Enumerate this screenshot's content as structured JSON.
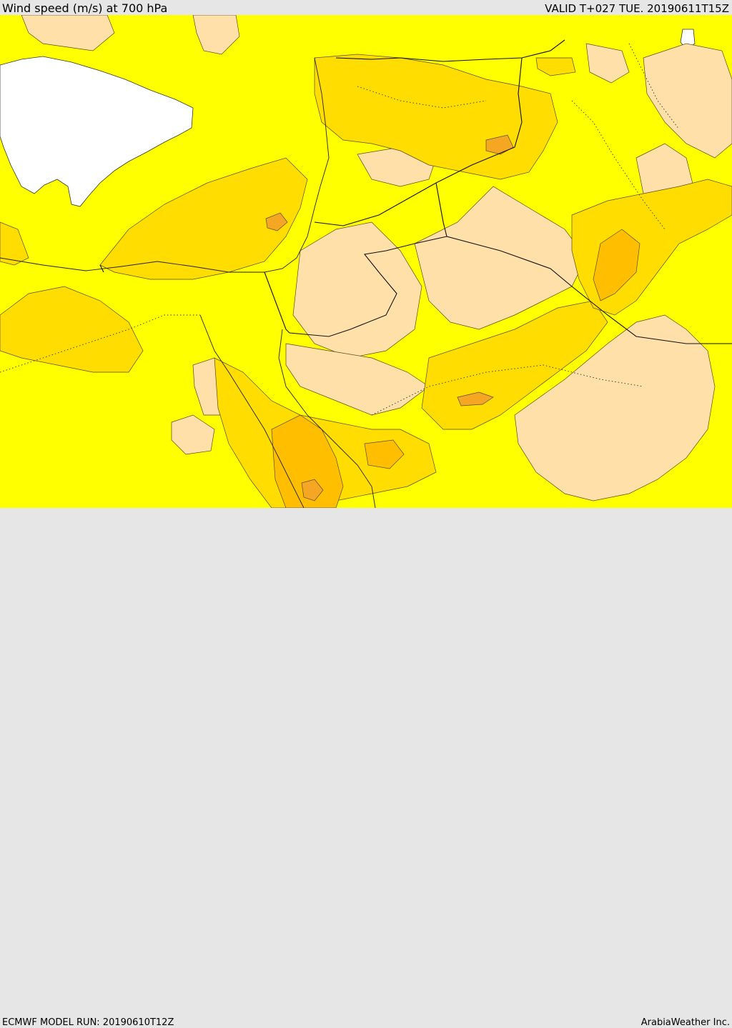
{
  "header": {
    "title": "Wind speed (m/s) at 700 hPa",
    "valid_time": "VALID T+027 TUE. 20190611T15Z"
  },
  "footer": {
    "model_run": "ECMWF MODEL RUN: 20190610T12Z",
    "credit": "ArabiaWeather Inc."
  },
  "map": {
    "variable": "wind speed",
    "pressure_level_hpa": 700,
    "units": "m/s",
    "colors": {
      "base": "#ffff00",
      "calm": "#ffe0a8",
      "moderate": "#ffdd00",
      "strong": "#ffbf00",
      "strongest": "#f5a623",
      "sea": "#ffffff"
    }
  }
}
